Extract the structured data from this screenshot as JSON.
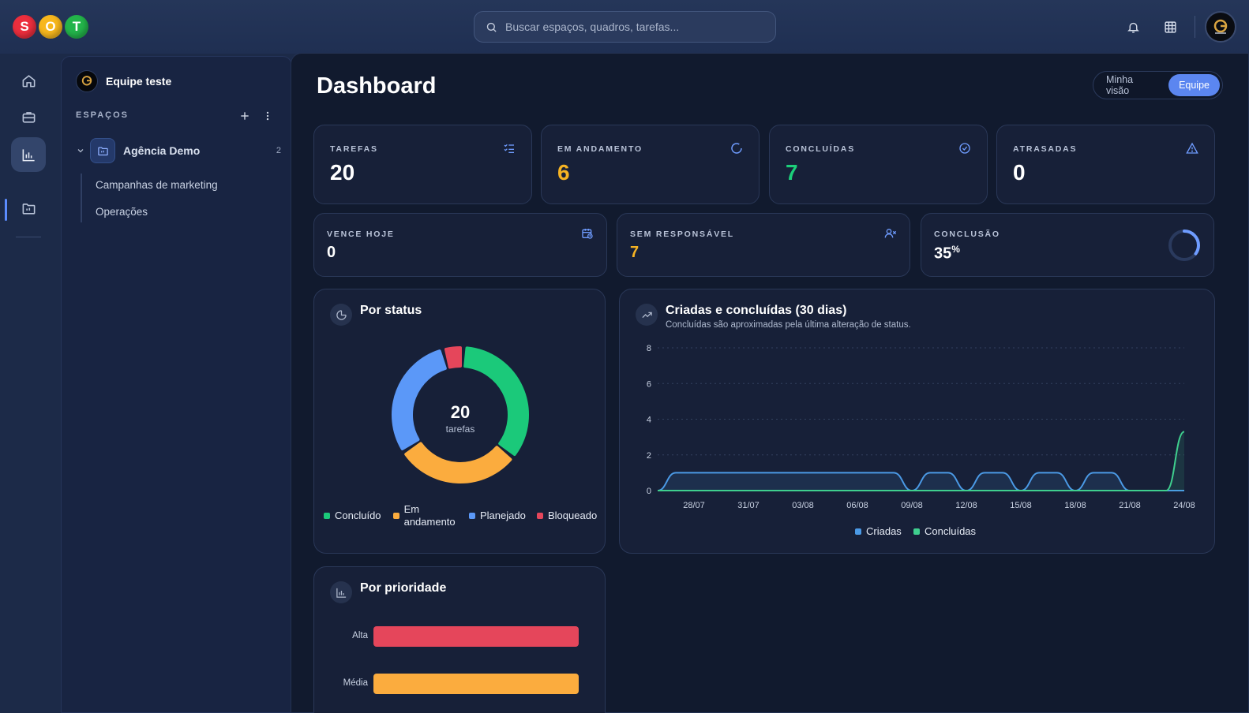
{
  "logo": {
    "letters": [
      "S",
      "O",
      "T"
    ],
    "colors": [
      "#ec2e3d",
      "#f7b71d",
      "#23b44a"
    ]
  },
  "search": {
    "placeholder": "Buscar espaços, quadros, tarefas..."
  },
  "header": {
    "icons": [
      "bell-icon",
      "grid-icon"
    ]
  },
  "rail": {
    "items": [
      "home-icon",
      "briefcase-icon",
      "chart-icon",
      "folder-icon"
    ],
    "active": "chart-icon"
  },
  "sidebar": {
    "team_name": "Equipe teste",
    "section_label": "ESPAÇOS",
    "space": {
      "name": "Agência Demo",
      "count": "2"
    },
    "subitems": [
      "Campanhas de marketing",
      "Operações"
    ]
  },
  "main": {
    "title": "Dashboard",
    "toggle": {
      "options": [
        "Minha visão",
        "Equipe"
      ],
      "active": "Equipe"
    },
    "stats": [
      {
        "label": "TAREFAS",
        "value": "20",
        "color": "#ffffff",
        "icon": "list-check-icon"
      },
      {
        "label": "EM ANDAMENTO",
        "value": "6",
        "color": "#f6b323",
        "icon": "spinner-icon"
      },
      {
        "label": "CONCLUÍDAS",
        "value": "7",
        "color": "#1ccf7a",
        "icon": "check-circle-icon"
      },
      {
        "label": "ATRASADAS",
        "value": "0",
        "color": "#ffffff",
        "icon": "alert-triangle-icon"
      }
    ],
    "stats2": [
      {
        "label": "VENCE HOJE",
        "value": "0",
        "color": "#ffffff",
        "icon": "calendar-clock-icon"
      },
      {
        "label": "SEM RESPONSÁVEL",
        "value": "7",
        "color": "#f6b323",
        "icon": "user-x-icon"
      },
      {
        "label": "CONCLUSÃO",
        "value": "35",
        "unit": "%",
        "color": "#ffffff",
        "icon": "progress-ring-icon",
        "progress": 0.35
      }
    ]
  },
  "status_panel": {
    "title": "Por status",
    "center_value": "20",
    "center_label": "tarefas",
    "legend": [
      {
        "label": "Concluído",
        "color": "#1bc97a"
      },
      {
        "label": "Em andamento",
        "color": "#fbac3e"
      },
      {
        "label": "Planejado",
        "color": "#5b98f8"
      },
      {
        "label": "Bloqueado",
        "color": "#e5465b"
      }
    ]
  },
  "trend_panel": {
    "title": "Criadas e concluídas (30 dias)",
    "subtitle": "Concluídas são aproximadas pela última alteração de status.",
    "legend": [
      {
        "label": "Criadas",
        "color": "#4b9ae6"
      },
      {
        "label": "Concluídas",
        "color": "#3fcf8e"
      }
    ]
  },
  "priority_panel": {
    "title": "Por prioridade"
  },
  "chart_data": [
    {
      "type": "pie",
      "title": "Por status",
      "categories": [
        "Concluído",
        "Em andamento",
        "Planejado",
        "Bloqueado"
      ],
      "values": [
        7,
        6,
        6,
        1
      ],
      "colors": [
        "#1bc97a",
        "#fbac3e",
        "#5b98f8",
        "#e5465b"
      ],
      "legend": "bottom"
    },
    {
      "type": "area",
      "title": "Criadas e concluídas (30 dias)",
      "x": [
        "26/07",
        "27/07",
        "28/07",
        "29/07",
        "30/07",
        "31/07",
        "01/08",
        "02/08",
        "03/08",
        "04/08",
        "05/08",
        "06/08",
        "07/08",
        "08/08",
        "09/08",
        "10/08",
        "11/08",
        "12/08",
        "13/08",
        "14/08",
        "15/08",
        "16/08",
        "17/08",
        "18/08",
        "19/08",
        "20/08",
        "21/08",
        "22/08",
        "23/08",
        "24/08"
      ],
      "xticks": [
        "28/07",
        "31/07",
        "03/08",
        "06/08",
        "09/08",
        "12/08",
        "15/08",
        "18/08",
        "21/08",
        "24/08"
      ],
      "series": [
        {
          "name": "Criadas",
          "color": "#4b9ae6",
          "values": [
            0,
            1,
            1,
            1,
            1,
            1,
            1,
            1,
            1,
            1,
            1,
            1,
            1,
            1,
            0,
            1,
            1,
            0,
            1,
            1,
            0,
            1,
            1,
            0,
            1,
            1,
            0,
            0,
            0,
            0
          ]
        },
        {
          "name": "Concluídas",
          "color": "#3fcf8e",
          "values": [
            0,
            0,
            0,
            0,
            0,
            0,
            0,
            0,
            0,
            0,
            0,
            0,
            0,
            0,
            0,
            0,
            0,
            0,
            0,
            0,
            0,
            0,
            0,
            0,
            0,
            0,
            0,
            0,
            0,
            3.3
          ]
        }
      ],
      "ylim": [
        0,
        8
      ],
      "yticks": [
        0,
        2,
        4,
        6,
        8
      ],
      "grid": true,
      "legend": "bottom"
    },
    {
      "type": "bar",
      "title": "Por prioridade",
      "orientation": "horizontal",
      "categories": [
        "Alta",
        "Média"
      ],
      "values": [
        1,
        1
      ],
      "colors": [
        "#e5465b",
        "#fbac3e"
      ]
    }
  ]
}
